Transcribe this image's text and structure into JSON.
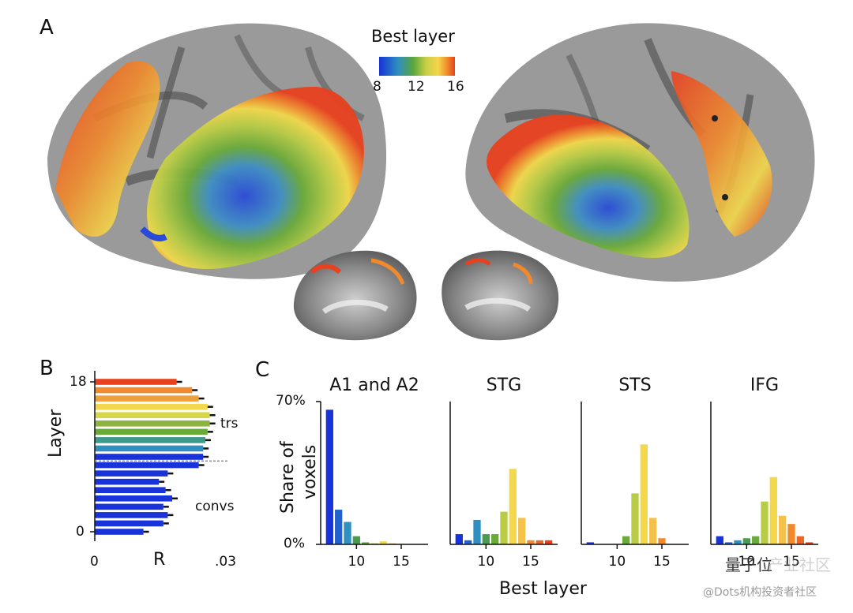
{
  "panel_a": {
    "letter": "A",
    "colorbar": {
      "title": "Best layer",
      "ticks": [
        "8",
        "12",
        "16"
      ]
    }
  },
  "panel_b": {
    "letter": "B",
    "ylabel": "Layer",
    "xlabel": "R",
    "yticks": [
      "18",
      "0"
    ],
    "xticks": [
      "0",
      ".03"
    ],
    "annotations": [
      "trs",
      "convs"
    ]
  },
  "panel_c": {
    "letter": "C",
    "xlabel": "Best layer",
    "ylabel_line1": "Share of",
    "ylabel_line2": "voxels",
    "yticks": [
      "70%",
      "0%"
    ]
  },
  "watermark": {
    "brand": "量子位",
    "faded": "产业社区",
    "credit": "@Dots机构投资者社区"
  },
  "colors": {
    "cortex_gray": "#9a9a9a",
    "sulcus_dark": "#4d4d4d",
    "blue": "#2a4bd7",
    "green": "#6aaa3a",
    "yellow": "#f2d84a",
    "orange": "#f08a2c",
    "red": "#e8411f"
  },
  "chart_data": [
    {
      "type": "bar",
      "orientation": "horizontal",
      "title": "",
      "xlabel": "R",
      "ylabel": "Layer",
      "xlim": [
        0,
        0.03
      ],
      "categories": [
        "0",
        "1",
        "2",
        "3",
        "4",
        "5",
        "6",
        "7",
        "8",
        "9",
        "10",
        "11",
        "12",
        "13",
        "14",
        "15",
        "16",
        "17",
        "18"
      ],
      "values": [
        0.011,
        0.0155,
        0.0165,
        0.0155,
        0.0175,
        0.016,
        0.0145,
        0.0165,
        0.0235,
        0.0245,
        0.0245,
        0.025,
        0.0255,
        0.026,
        0.026,
        0.0255,
        0.0235,
        0.022,
        0.0185
      ],
      "annotations": [
        "trs",
        "convs"
      ]
    },
    {
      "type": "bar",
      "title": "A1 and A2",
      "xlabel": "Best layer",
      "ylabel": "Share of voxels",
      "ylim": [
        0,
        70
      ],
      "xlim": [
        6,
        18
      ],
      "xticks": [
        10,
        15
      ],
      "x": [
        7,
        8,
        9,
        10,
        11,
        12,
        13,
        14,
        15,
        16,
        17
      ],
      "values": [
        66,
        17,
        11,
        4,
        1,
        0.5,
        1.5,
        0.5,
        0,
        0,
        0
      ]
    },
    {
      "type": "bar",
      "title": "STG",
      "xlabel": "Best layer",
      "ylabel": "Share of voxels",
      "ylim": [
        0,
        70
      ],
      "xlim": [
        6,
        18
      ],
      "xticks": [
        10,
        15
      ],
      "x": [
        7,
        8,
        9,
        10,
        11,
        12,
        13,
        14,
        15,
        16,
        17
      ],
      "values": [
        5,
        2,
        12,
        5,
        5,
        16,
        37,
        13,
        2,
        2,
        2
      ]
    },
    {
      "type": "bar",
      "title": "STS",
      "xlabel": "Best layer",
      "ylabel": "Share of voxels",
      "ylim": [
        0,
        70
      ],
      "xlim": [
        6,
        18
      ],
      "xticks": [
        10,
        15
      ],
      "x": [
        7,
        8,
        9,
        10,
        11,
        12,
        13,
        14,
        15,
        16,
        17
      ],
      "values": [
        1,
        0,
        0,
        0,
        4,
        25,
        49,
        13,
        3,
        0,
        0
      ]
    },
    {
      "type": "bar",
      "title": "IFG",
      "xlabel": "Best layer",
      "ylabel": "Share of voxels",
      "ylim": [
        0,
        70
      ],
      "xlim": [
        6,
        18
      ],
      "xticks": [
        10,
        15
      ],
      "x": [
        7,
        8,
        9,
        10,
        11,
        12,
        13,
        14,
        15,
        16,
        17
      ],
      "values": [
        4,
        1,
        2,
        3,
        4,
        21,
        33,
        14,
        10,
        4,
        1
      ]
    }
  ]
}
